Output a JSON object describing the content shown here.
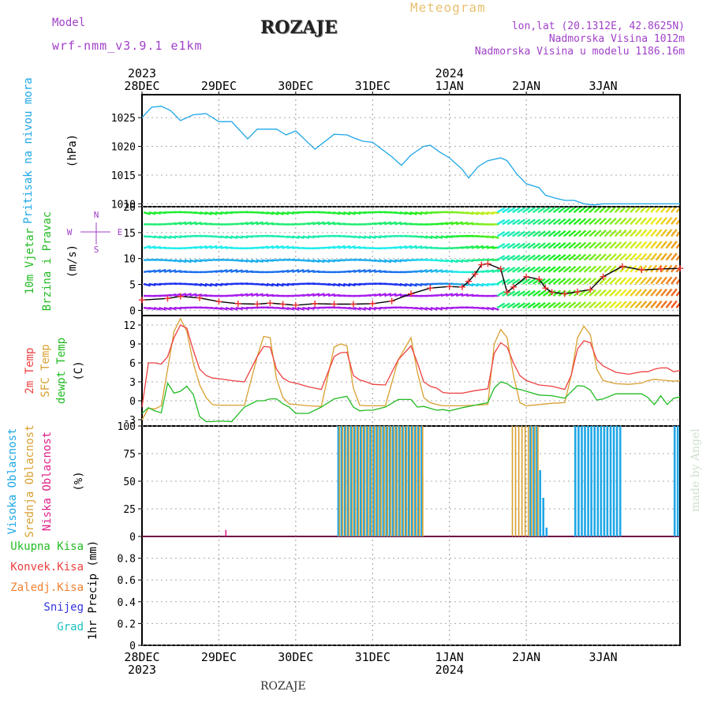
{
  "header": {
    "model_label": "Model",
    "model_name": "wrf-nmm_v3.9.1 e1km",
    "station": "ROZAJE",
    "meteogram": "Meteogram",
    "lonlat": "lon,lat (20.1312E, 42.8625N)",
    "elevation": "Nadmorska Visina 1012m",
    "model_elevation": "Nadmorska Visina u modelu 1186.16m"
  },
  "footer": {
    "station": "ROZAJE",
    "credit": "made by Angel"
  },
  "time_axis": {
    "days": [
      "28DEC",
      "29DEC",
      "30DEC",
      "31DEC",
      "1JAN",
      "2JAN",
      "3JAN"
    ],
    "years": [
      {
        "day_index": 0,
        "label": "2023"
      },
      {
        "day_index": 4,
        "label": "2024"
      }
    ]
  },
  "colors": {
    "pressure": "#1fa7e6",
    "t2m": "#ee4040",
    "sfc_temp": "#d8a030",
    "dewpoint": "#22bb22",
    "cloud_high": "#1fa7e6",
    "cloud_mid": "#d8a030",
    "cloud_low": "#e0208a",
    "gust_marker": "#ee3030",
    "wind_line": "#000000"
  },
  "panels": {
    "pressure": {
      "ylabel_name": "Pritisak na nivou mora",
      "ylabel_unit": "(hPa)",
      "ticks": [
        "1010",
        "1015",
        "1020",
        "1025"
      ]
    },
    "wind": {
      "ylabel_name": "10m Vjetar",
      "ylabel_name2": "Brzina i Pravac",
      "ylabel_unit": "(m/s)",
      "compass": {
        "n": "N",
        "s": "S",
        "w": "W",
        "e": "E"
      },
      "ticks": [
        "0",
        "5",
        "10",
        "15",
        "20"
      ]
    },
    "temperature": {
      "ylabel_t2m": "2m Temp",
      "ylabel_sfc": "SFC Temp",
      "ylabel_dew": "dewpt Temp",
      "ylabel_unit": "(C)",
      "ticks": [
        "-3",
        "0",
        "3",
        "6",
        "9",
        "12"
      ]
    },
    "clouds": {
      "ylabel_high": "Visoka Oblacnost",
      "ylabel_mid": "Srednja Oblacnost",
      "ylabel_low": "Niska Oblacnost",
      "ylabel_unit": "(%)",
      "ticks": [
        "0",
        "25",
        "50",
        "75",
        "100"
      ]
    },
    "precip": {
      "legend": [
        "Ukupna Kisa",
        "Konvek.Kisa",
        "Zaledj.Kisa",
        "Snijeg",
        "Grad"
      ],
      "legend_colors": [
        "#22bb22",
        "#ee4040",
        "#f08030",
        "#3333dd",
        "#20c0c0"
      ],
      "ylabel": "1hr Precip (mm)",
      "ticks": [
        "0",
        "0.2",
        "0.4",
        "0.6",
        "0.8"
      ]
    }
  },
  "chart_data": [
    {
      "type": "line",
      "title": "Pritisak na nivou mora (hPa)",
      "x_unit": "hours since 28DEC 00",
      "ylim": [
        1009.5,
        1029
      ],
      "series": [
        {
          "name": "Pritisak na nivou mora",
          "x": [
            0,
            3,
            6,
            9,
            12,
            16,
            20,
            24,
            28,
            33,
            36,
            42,
            45,
            48,
            54,
            60,
            64,
            66,
            69,
            72,
            78,
            81,
            84,
            88,
            90,
            93,
            96,
            100,
            102,
            105,
            108,
            112,
            114,
            117,
            120,
            124,
            126,
            129,
            132,
            135,
            138,
            141,
            144,
            148,
            150,
            153,
            156,
            159,
            162,
            165,
            168
          ],
          "y": [
            1025,
            1026.8,
            1027,
            1026.2,
            1024.5,
            1025.5,
            1025.7,
            1024.3,
            1024.3,
            1021.3,
            1023,
            1023,
            1022,
            1022.7,
            1019.5,
            1022.1,
            1022,
            1021.5,
            1020.9,
            1020.7,
            1018.2,
            1016.7,
            1018.5,
            1020,
            1020.2,
            1019,
            1018,
            1016,
            1014.5,
            1016.5,
            1017.5,
            1018,
            1017.5,
            1015.2,
            1013.5,
            1012.8,
            1011.5,
            1011,
            1010.6,
            1010.6,
            1010,
            1009.8,
            1010,
            1010,
            1010,
            1010,
            1010,
            1010,
            1010,
            1010,
            1010
          ]
        }
      ]
    },
    {
      "type": "line",
      "title": "10m Vjetar Brzina i Pravac (m/s)",
      "x_unit": "hours since 28DEC 00",
      "ylim": [
        -1,
        20
      ],
      "series": [
        {
          "name": "Brzina",
          "x": [
            0,
            8,
            12,
            18,
            24,
            30,
            36,
            40,
            44,
            48,
            54,
            60,
            66,
            72,
            78,
            84,
            90,
            96,
            100,
            102,
            104,
            106,
            108,
            112,
            114,
            116,
            120,
            124,
            126,
            128,
            132,
            136,
            140,
            144,
            150,
            156,
            162,
            168
          ],
          "y": [
            2,
            2.3,
            2.7,
            2.4,
            1.7,
            1.3,
            1.2,
            1.4,
            1.2,
            1,
            1.3,
            1.2,
            1.2,
            1.3,
            1.8,
            3.2,
            4.3,
            4.6,
            4.5,
            5.6,
            7,
            8.8,
            9,
            8,
            3.5,
            4.5,
            6.5,
            6,
            4.3,
            3.5,
            3.2,
            3.6,
            4,
            6.5,
            8.5,
            7.8,
            8,
            8.1
          ]
        }
      ]
    },
    {
      "type": "line",
      "title": "2m Temp / SFC Temp / dewpt Temp (C)",
      "x_unit": "hours since 28DEC 00",
      "ylim": [
        -4,
        13.5
      ],
      "series": [
        {
          "name": "2m Temp",
          "x": [
            0,
            2,
            4,
            6,
            8,
            10,
            12,
            14,
            16,
            18,
            20,
            22,
            24,
            28,
            32,
            36,
            38,
            40,
            42,
            44,
            46,
            48,
            52,
            56,
            60,
            62,
            64,
            66,
            68,
            70,
            72,
            76,
            80,
            84,
            86,
            88,
            90,
            92,
            94,
            96,
            100,
            104,
            108,
            110,
            112,
            114,
            116,
            118,
            120,
            124,
            128,
            132,
            134,
            136,
            138,
            140,
            142,
            144,
            148,
            152,
            156,
            158,
            160,
            162,
            164,
            166,
            168
          ],
          "y": [
            -1,
            6,
            6,
            5.8,
            7,
            10,
            12,
            11.5,
            8,
            5,
            4,
            3.6,
            3.5,
            3.2,
            3,
            7,
            8.6,
            8.5,
            5,
            3.6,
            3,
            2.8,
            2.2,
            1.8,
            7,
            7.6,
            7.7,
            4,
            3.3,
            3,
            2.6,
            2.5,
            6.5,
            8.7,
            6,
            3,
            2.3,
            2,
            1.3,
            1.2,
            1.2,
            1.6,
            1.9,
            7.5,
            9.2,
            8.5,
            6,
            4,
            3.2,
            2.5,
            2.3,
            1.8,
            4,
            8.2,
            9.5,
            9.2,
            6.5,
            5.5,
            4.5,
            4.2,
            4.6,
            4.6,
            5,
            5.2,
            5.2,
            4.6,
            4.8
          ]
        },
        {
          "name": "SFC Temp",
          "x": [
            0,
            2,
            4,
            6,
            8,
            10,
            12,
            14,
            16,
            18,
            20,
            22,
            24,
            28,
            32,
            36,
            38,
            40,
            42,
            44,
            46,
            48,
            52,
            56,
            60,
            62,
            64,
            66,
            68,
            70,
            72,
            76,
            80,
            84,
            86,
            88,
            90,
            92,
            94,
            96,
            100,
            104,
            108,
            110,
            112,
            114,
            116,
            118,
            120,
            124,
            128,
            132,
            134,
            136,
            138,
            140,
            142,
            144,
            148,
            152,
            156,
            158,
            160,
            162,
            164,
            166,
            168
          ],
          "y": [
            -3,
            -1.2,
            -1.3,
            -0.8,
            5,
            11,
            13,
            11,
            6,
            2.5,
            0.5,
            -0.6,
            -0.7,
            -0.7,
            -0.7,
            7,
            10.2,
            10,
            3.5,
            0.5,
            -0.5,
            -0.6,
            -0.8,
            -0.9,
            8.5,
            9,
            8.7,
            2,
            -0.7,
            -0.8,
            -0.8,
            -0.8,
            6.5,
            10,
            4.5,
            0.5,
            -0.3,
            -0.6,
            -0.8,
            -0.8,
            -0.8,
            -0.7,
            -0.6,
            9,
            11.3,
            10,
            4,
            -0.3,
            -0.8,
            -0.6,
            -0.4,
            -0.3,
            4,
            10,
            11.8,
            10.5,
            5,
            3.2,
            2.7,
            2.6,
            2.8,
            3.2,
            3.4,
            3.3,
            3.2,
            3.1,
            3.2
          ]
        },
        {
          "name": "dewpt Temp",
          "x": [
            0,
            2,
            4,
            6,
            8,
            10,
            12,
            14,
            16,
            18,
            20,
            22,
            24,
            28,
            32,
            36,
            38,
            40,
            42,
            44,
            46,
            48,
            52,
            56,
            60,
            62,
            64,
            66,
            68,
            70,
            72,
            76,
            80,
            84,
            86,
            88,
            90,
            92,
            94,
            96,
            100,
            104,
            108,
            110,
            112,
            114,
            116,
            118,
            120,
            124,
            128,
            132,
            134,
            136,
            138,
            140,
            142,
            144,
            148,
            152,
            156,
            158,
            160,
            162,
            164,
            166,
            168
          ],
          "y": [
            -2,
            -1.1,
            -1.6,
            -1.9,
            2.8,
            1.2,
            1.5,
            2.3,
            1,
            -2.5,
            -3.3,
            -3.3,
            -3.2,
            -3.3,
            -1,
            0,
            0,
            0.3,
            0.3,
            -0.5,
            -1,
            -2,
            -2,
            -1,
            0.3,
            0.5,
            0.7,
            -1,
            -1.6,
            -1.5,
            -1.5,
            -1,
            0.2,
            0.2,
            -1,
            -0.9,
            -1.2,
            -1.5,
            -1.4,
            -1.6,
            -1.1,
            -0.7,
            -0.3,
            2,
            3,
            2.7,
            2,
            1.8,
            1.5,
            0.9,
            0.8,
            0.4,
            1.4,
            2.4,
            2.3,
            1.7,
            0.1,
            0.3,
            1.1,
            1.1,
            1.1,
            0.5,
            -0.6,
            0.8,
            -0.6,
            0.4,
            0.6
          ]
        }
      ]
    },
    {
      "type": "bar",
      "title": "Oblacnost (%)",
      "x_unit": "hours since 28DEC 00",
      "ylim": [
        0,
        100
      ],
      "series": [
        {
          "name": "Visoka Oblacnost",
          "spans": [
            [
              61,
              88,
              100
            ],
            [
              121,
              124,
              100
            ],
            [
              124,
              125,
              60
            ],
            [
              125,
              126,
              35
            ],
            [
              126,
              127,
              8
            ],
            [
              135,
              150,
              100
            ],
            [
              166,
              168,
              100
            ]
          ]
        },
        {
          "name": "Srednja Oblacnost",
          "spans": [
            [
              61,
              88,
              100
            ],
            [
              86,
              88,
              55
            ],
            [
              115,
              124,
              100
            ]
          ]
        },
        {
          "name": "Niska Oblacnost",
          "spans": [
            [
              26,
              27,
              6
            ]
          ]
        }
      ]
    },
    {
      "type": "bar",
      "title": "1hr Precip (mm)",
      "x_unit": "hours since 28DEC 00",
      "ylim": [
        0,
        1
      ],
      "series": [
        {
          "name": "Ukupna Kisa",
          "values": []
        },
        {
          "name": "Konvek.Kisa",
          "values": []
        },
        {
          "name": "Zaledj.Kisa",
          "values": []
        },
        {
          "name": "Snijeg",
          "values": []
        },
        {
          "name": "Grad",
          "values": []
        }
      ]
    }
  ]
}
